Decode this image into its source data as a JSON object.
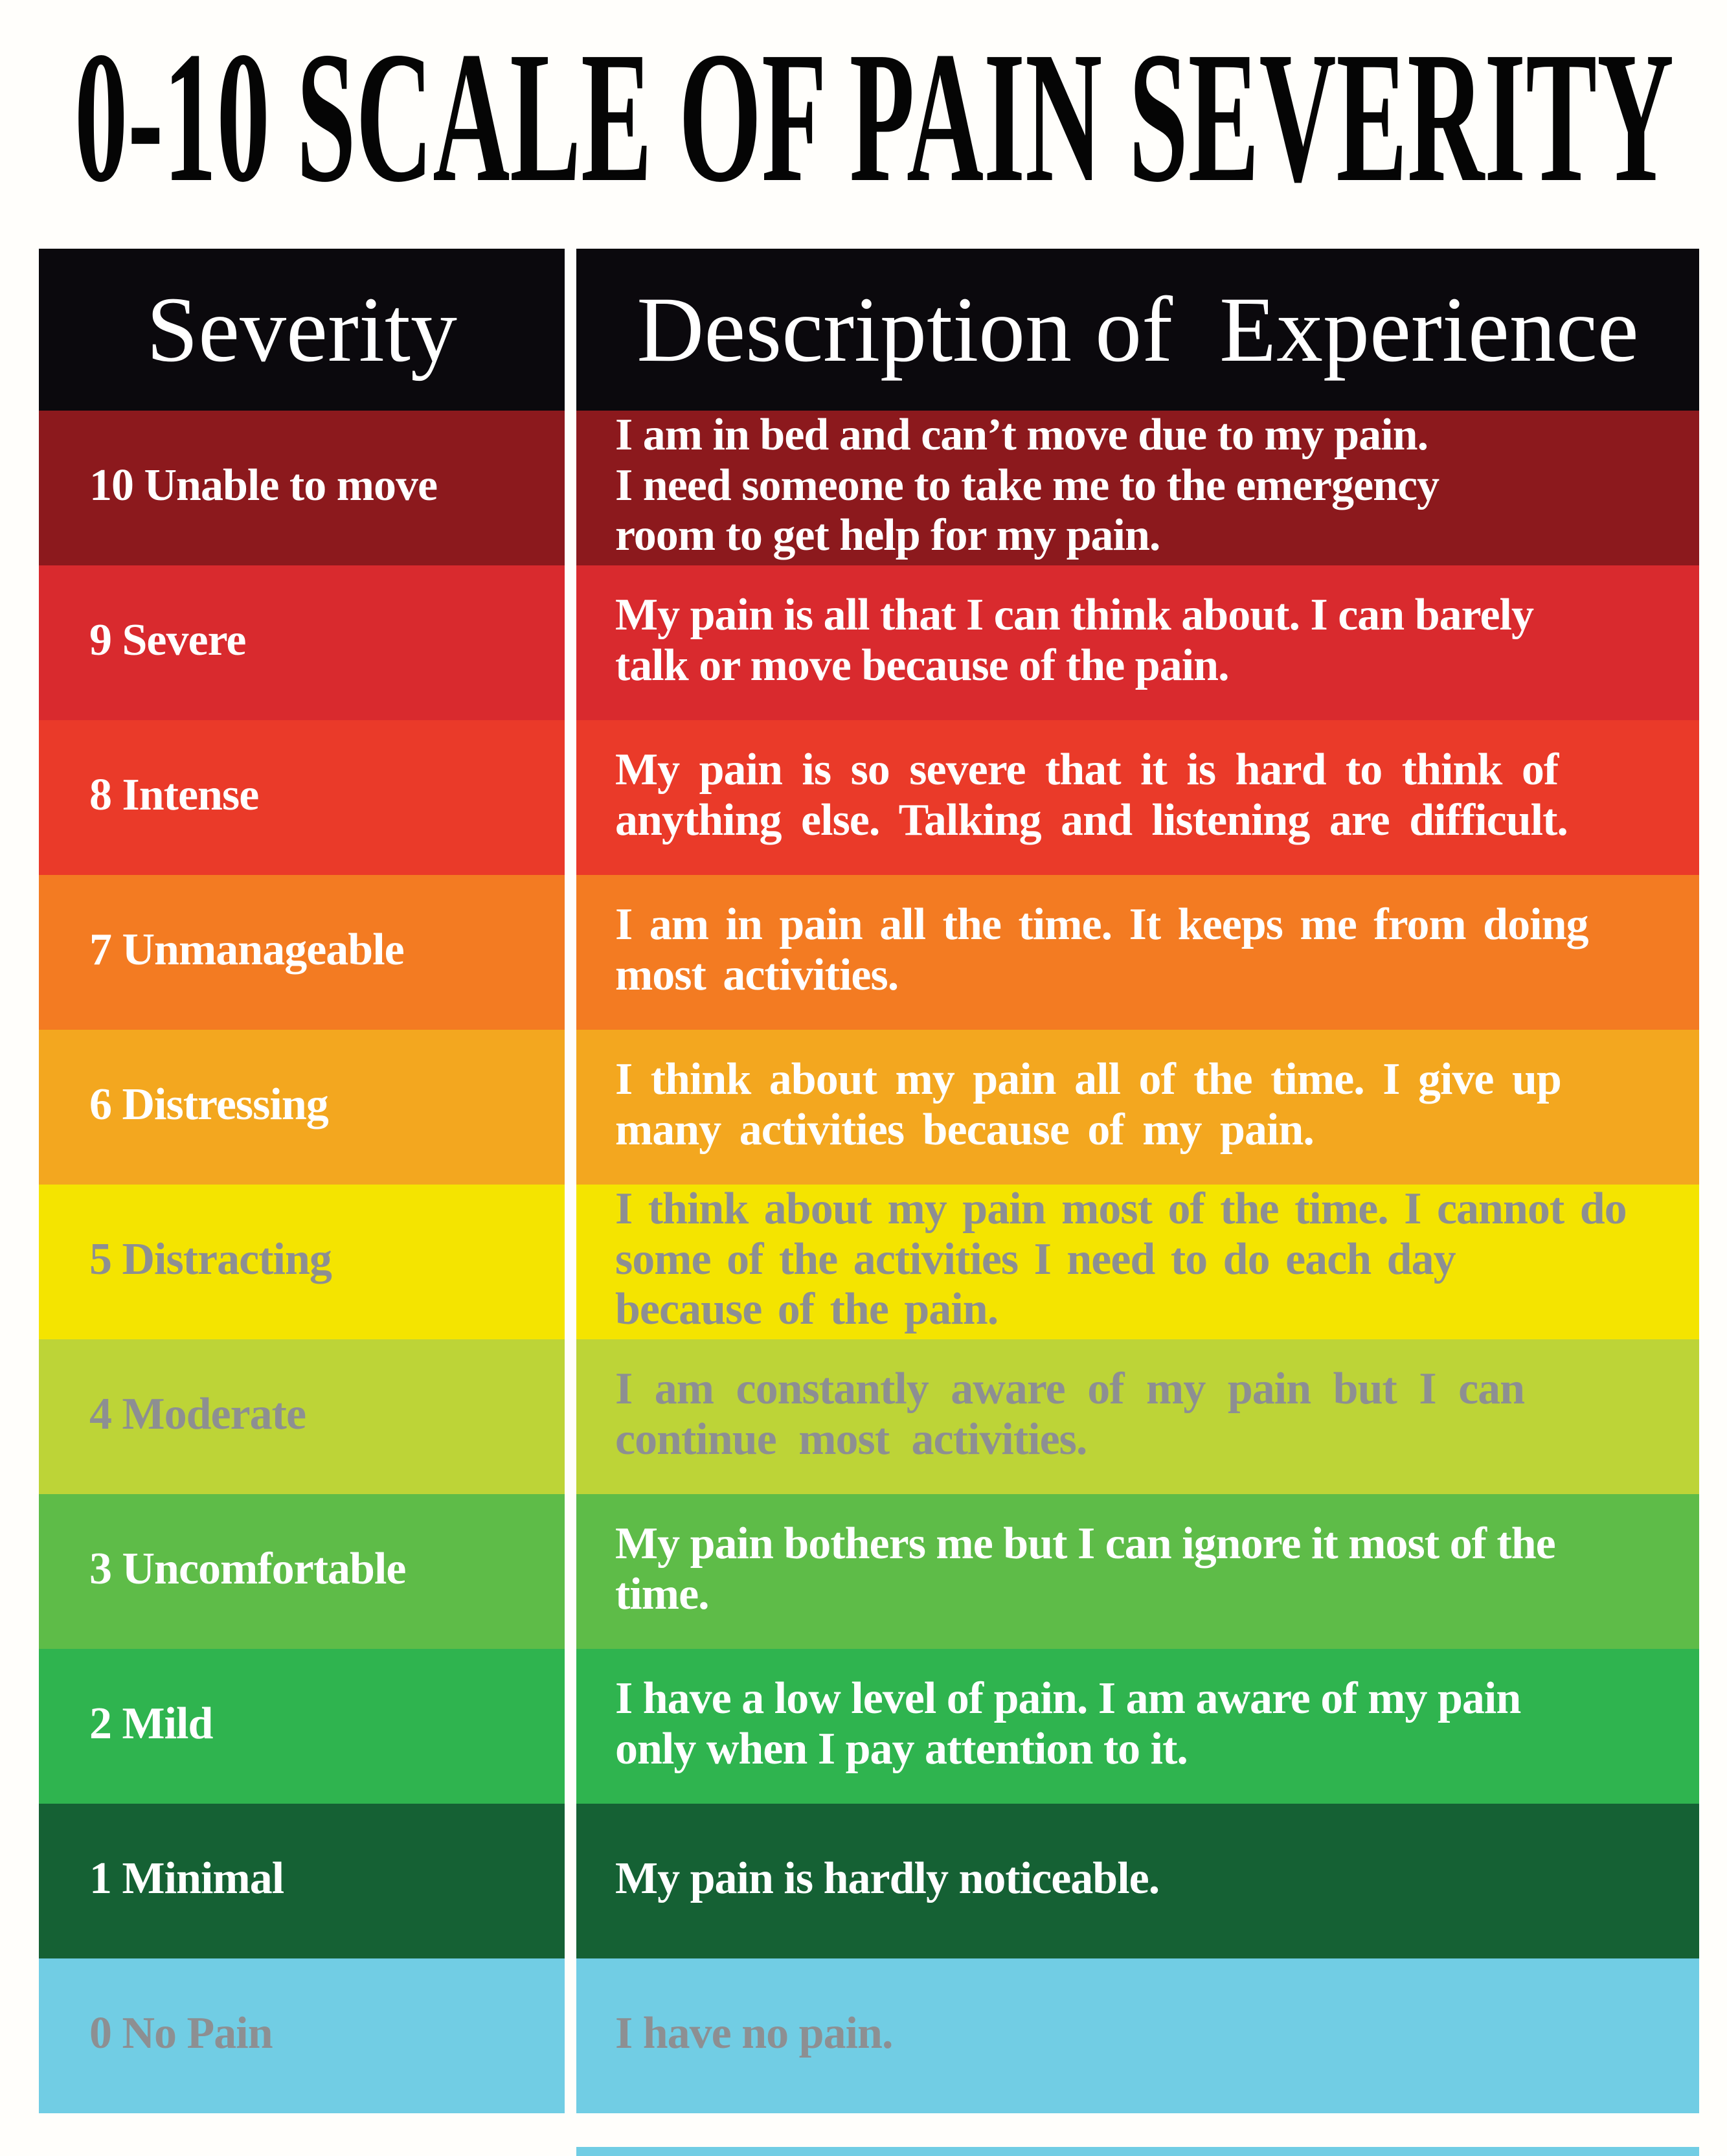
{
  "header": {
    "bg": "#0b090d",
    "text_color": "#ffffff"
  },
  "colors": {
    "page_bg": "#fffefb",
    "title_color": "#050505",
    "gray_text": "#8d8f92",
    "white_text": "#ffffff",
    "bottom_strip": "#71cde4"
  },
  "chart_data": {
    "type": "table",
    "title": "0-10 SCALE OF PAIN SEVERITY",
    "columns": [
      "Severity",
      "Description of  Experience"
    ],
    "rows": [
      {
        "label": "10 Unable to move",
        "description": "I am in bed and can’t move due to my pain.\nI need someone to take me to the emergency\nroom to get help for my pain.",
        "bg": "#8c191d",
        "text_color": "#ffffff"
      },
      {
        "label": "9 Severe",
        "description": "My pain is all that I can think about. I can barely\ntalk or move because of the pain.",
        "bg": "#d92a2e",
        "text_color": "#ffffff"
      },
      {
        "label": "8 Intense",
        "description": "My pain is so severe that it is hard to think of\nanything else. Talking and listening are difficult.",
        "bg": "#ea3a29",
        "text_color": "#ffffff"
      },
      {
        "label": "7 Unmanageable",
        "description": "I am in pain all the time. It keeps me from doing\nmost activities.",
        "bg": "#f37b22",
        "text_color": "#ffffff"
      },
      {
        "label": "6 Distressing",
        "description": "I think about my pain all of the time. I give up\nmany activities because of my pain.",
        "bg": "#f3a71f",
        "text_color": "#ffffff"
      },
      {
        "label": "5 Distracting",
        "description": "I think about my pain most of the time. I cannot do\nsome of the activities I need to do each day\nbecause of the pain.",
        "bg": "#f4e400",
        "text_color": "#8d8f92"
      },
      {
        "label": "4 Moderate",
        "description": "I am constantly aware of my pain but I can\ncontinue  most activities.",
        "bg": "#bdd437",
        "text_color": "#8d8f92"
      },
      {
        "label": "3 Uncomfortable",
        "description": "My pain bothers me but I can ignore it most of the\ntime.",
        "bg": "#5ebc48",
        "text_color": "#ffffff"
      },
      {
        "label": "2 Mild",
        "description": "I have a low level of pain. I am aware of my pain\nonly when I pay attention to it.",
        "bg": "#2fb44f",
        "text_color": "#ffffff"
      },
      {
        "label": "1 Minimal",
        "description": "My pain is hardly noticeable.",
        "bg": "#156134",
        "text_color": "#ffffff"
      },
      {
        "label": "0 No Pain",
        "description": "I have no pain.",
        "bg": "#71cde4",
        "text_color": "#8d8f92"
      }
    ]
  }
}
